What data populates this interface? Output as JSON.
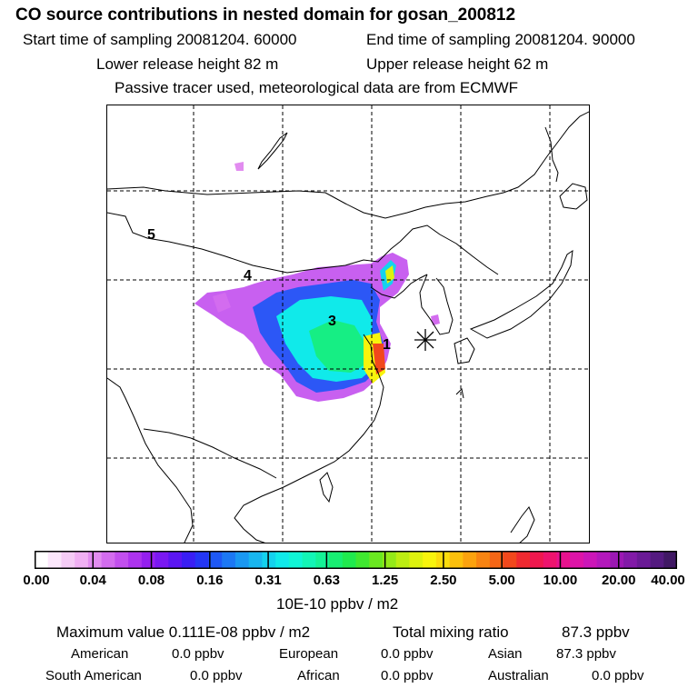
{
  "header": {
    "title": "CO  source contributions in nested domain for gosan_200812",
    "start_time": "Start time of sampling 20081204. 60000",
    "end_time": "End time of sampling 20081204. 90000",
    "lower_release": "Lower release height   82 m",
    "upper_release": "Upper release height   62 m",
    "tracer_note": "Passive tracer used, meteorological data are from ECMWF"
  },
  "map": {
    "region_labels": [
      "1",
      "3",
      "4",
      "5"
    ],
    "receptor_marker": "gosan-receptor"
  },
  "colorbar": {
    "ticks": [
      "0.00",
      "0.04",
      "0.08",
      "0.16",
      "0.31",
      "0.63",
      "1.25",
      "2.50",
      "5.00",
      "10.00",
      "20.00",
      "40.00"
    ],
    "colors": [
      "#ffffff",
      "#fbe6fb",
      "#f5ccf6",
      "#f0b0f3",
      "#e28cf0",
      "#d36cef",
      "#c24fee",
      "#ad33ee",
      "#9520f0",
      "#7a18f2",
      "#5b16f2",
      "#3a1ef4",
      "#2436f5",
      "#1e58f5",
      "#1c78f4",
      "#1a98f2",
      "#18b6f0",
      "#14d2ee",
      "#10eaea",
      "#10f5d6",
      "#12f5b6",
      "#14f296",
      "#18ee72",
      "#20ea4e",
      "#40e830",
      "#6ae820",
      "#94ea18",
      "#bcee12",
      "#def20e",
      "#f8f40c",
      "#fcdc0c",
      "#fcc00c",
      "#fba20e",
      "#f88412",
      "#f56616",
      "#f2481c",
      "#f02a30",
      "#f0184e",
      "#ee146e",
      "#e8128e",
      "#de14a8",
      "#cc16b8",
      "#b418bc",
      "#9c18b4",
      "#821aa8",
      "#6a1a96",
      "#541a80",
      "#401864"
    ],
    "units": "10E-10 ppbv / m2"
  },
  "summary": {
    "max_label": "Maximum value  0.111E-08 ppbv / m2",
    "total_label": "Total mixing ratio",
    "total_value": "87.3 ppbv"
  },
  "regions": [
    {
      "name": "American",
      "value": "0.0 ppbv"
    },
    {
      "name": "European",
      "value": "0.0 ppbv"
    },
    {
      "name": "Asian",
      "value": "87.3 ppbv"
    },
    {
      "name": "South American",
      "value": "0.0 ppbv"
    },
    {
      "name": "African",
      "value": "0.0 ppbv"
    },
    {
      "name": "Australian",
      "value": "0.0 ppbv"
    }
  ]
}
